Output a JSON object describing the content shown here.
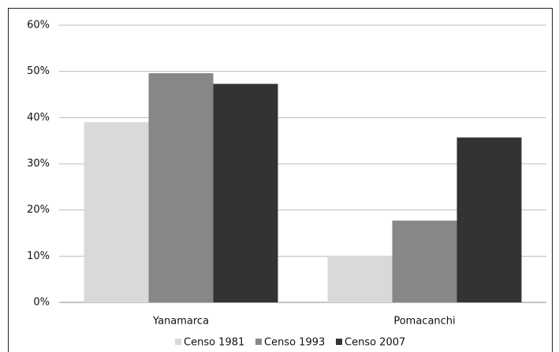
{
  "chart_data": {
    "type": "bar",
    "categories": [
      "Yanamarca",
      "Pomacanchi"
    ],
    "series": [
      {
        "name": "Censo 1981",
        "color": "#d9d9d9",
        "values": [
          39.0,
          10.1
        ]
      },
      {
        "name": "Censo 1993",
        "color": "#878787",
        "values": [
          49.6,
          17.7
        ]
      },
      {
        "name": "Censo 2007",
        "color": "#333333",
        "values": [
          47.3,
          35.7
        ]
      }
    ],
    "ylim": [
      0,
      60
    ],
    "yticks": [
      {
        "value": 0,
        "label": "0%"
      },
      {
        "value": 10,
        "label": "10%"
      },
      {
        "value": 20,
        "label": "20%"
      },
      {
        "value": 30,
        "label": "30%"
      },
      {
        "value": 40,
        "label": "40%"
      },
      {
        "value": 50,
        "label": "50%"
      },
      {
        "value": 60,
        "label": "60%"
      }
    ],
    "grid": true,
    "legend": "bottom"
  }
}
